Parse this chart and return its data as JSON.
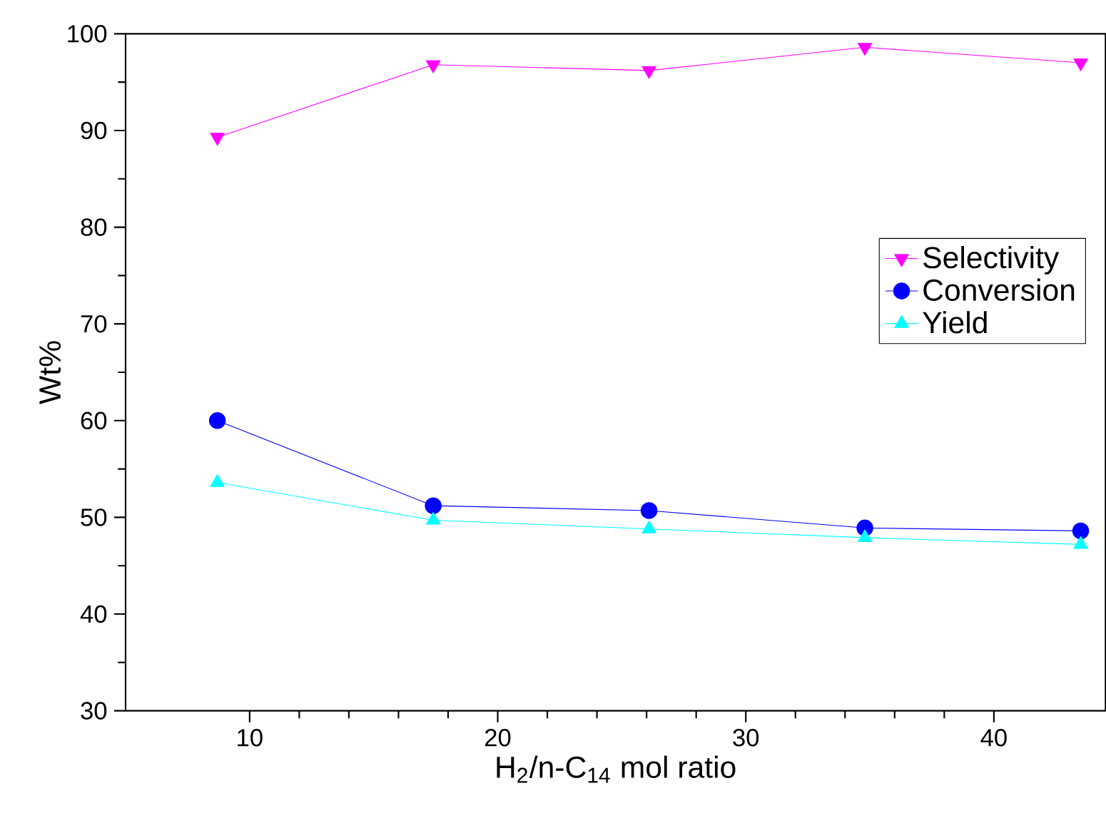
{
  "chart_data": {
    "type": "line",
    "xlabel": "H$_{2}$/n-C$_{14}$ mol ratio",
    "ylabel": "Wt%",
    "x": [
      8.7,
      17.4,
      26.1,
      34.8,
      43.5
    ],
    "series": [
      {
        "name": "Selectivity",
        "color": "#ff00ff",
        "marker": "triangle-down",
        "values": [
          89.3,
          96.8,
          96.2,
          98.6,
          97.0
        ]
      },
      {
        "name": "Conversion",
        "color": "#0000ff",
        "marker": "circle",
        "values": [
          60.0,
          51.2,
          50.7,
          48.9,
          48.6
        ]
      },
      {
        "name": "Yield",
        "color": "#00ffff",
        "marker": "triangle",
        "values": [
          53.6,
          49.7,
          48.8,
          47.9,
          47.2
        ]
      }
    ],
    "xlim": [
      5,
      44.5
    ],
    "xticks": [
      10,
      20,
      30,
      40
    ],
    "ylim": [
      30,
      100
    ],
    "yticks": [
      30,
      40,
      50,
      60,
      70,
      80,
      90,
      100
    ],
    "grid": false,
    "legend": "right",
    "line_style": "solid"
  }
}
